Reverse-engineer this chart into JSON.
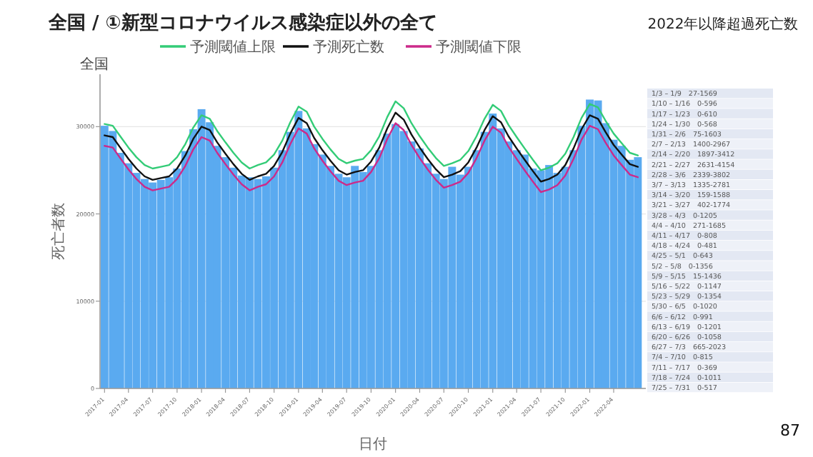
{
  "chart_data": [
    {
      "type": "bar",
      "title": "全国 / ①新型コロナウイルス感染症以外の全て",
      "xlabel": "日付",
      "ylabel": "死亡者数",
      "annotations": [
        "全国",
        "87"
      ],
      "x": [
        "2017-01",
        "2017-02",
        "2017-03",
        "2017-04",
        "2017-05",
        "2017-06",
        "2017-07",
        "2017-08",
        "2017-09",
        "2017-10",
        "2017-11",
        "2017-12",
        "2018-01",
        "2018-02",
        "2018-03",
        "2018-04",
        "2018-05",
        "2018-06",
        "2018-07",
        "2018-08",
        "2018-09",
        "2018-10",
        "2018-11",
        "2018-12",
        "2019-01",
        "2019-02",
        "2019-03",
        "2019-04",
        "2019-05",
        "2019-06",
        "2019-07",
        "2019-08",
        "2019-09",
        "2019-10",
        "2019-11",
        "2019-12",
        "2020-01",
        "2020-02",
        "2020-03",
        "2020-04",
        "2020-05",
        "2020-06",
        "2020-07",
        "2020-08",
        "2020-09",
        "2020-10",
        "2020-11",
        "2020-12",
        "2021-01",
        "2021-02",
        "2021-03",
        "2021-04",
        "2021-05",
        "2021-06",
        "2021-07",
        "2021-08",
        "2021-09",
        "2021-10",
        "2021-11",
        "2021-12",
        "2022-01",
        "2022-02",
        "2022-03",
        "2022-04",
        "2022-05",
        "2022-06",
        "2022-07"
      ],
      "series": [
        {
          "type": "bar",
          "color": "#5aaaf0",
          "values": [
            30100,
            29500,
            27000,
            25800,
            24700,
            24000,
            23600,
            23900,
            24200,
            25200,
            27200,
            29700,
            32000,
            30500,
            27800,
            26500,
            25300,
            24400,
            24200,
            24000,
            24300,
            25300,
            27300,
            29400,
            31800,
            29800,
            28000,
            26800,
            25500,
            24600,
            24200,
            25500,
            24800,
            25500,
            27300,
            29200,
            30300,
            29500,
            28300,
            27500,
            25800,
            24600,
            24000,
            25400,
            24500,
            25400,
            27300,
            29400,
            31500,
            29800,
            28300,
            27300,
            26800,
            25200,
            25000,
            25600,
            24700,
            25400,
            27300,
            30100,
            33100,
            33000,
            30400,
            28500,
            27800,
            26200,
            26500
          ]
        },
        {
          "type": "line",
          "name": "予測閾値上限",
          "color": "#33cc77",
          "values": [
            30300,
            30100,
            28900,
            27600,
            26500,
            25600,
            25200,
            25400,
            25600,
            26500,
            28000,
            29900,
            31300,
            30900,
            29500,
            28200,
            27000,
            25900,
            25200,
            25600,
            25900,
            26800,
            28400,
            30500,
            32300,
            31700,
            30000,
            28600,
            27400,
            26300,
            25800,
            26100,
            26300,
            27300,
            28900,
            31100,
            32900,
            32100,
            30400,
            28900,
            27600,
            26400,
            25500,
            25800,
            26200,
            27200,
            28900,
            30900,
            32500,
            31800,
            30200,
            28800,
            27500,
            26200,
            25000,
            25300,
            25800,
            26900,
            28800,
            31000,
            32600,
            32200,
            30700,
            29200,
            28100,
            27000,
            26700
          ]
        },
        {
          "type": "line",
          "name": "予測死亡数",
          "color": "#111111",
          "values": [
            29000,
            28800,
            27600,
            26300,
            25200,
            24300,
            23900,
            24100,
            24300,
            25200,
            26700,
            28600,
            30000,
            29600,
            28200,
            26900,
            25700,
            24600,
            23900,
            24300,
            24600,
            25500,
            27100,
            29200,
            31000,
            30400,
            28700,
            27300,
            26100,
            25000,
            24500,
            24800,
            25000,
            26000,
            27600,
            29800,
            31600,
            30800,
            29100,
            27600,
            26300,
            25100,
            24200,
            24500,
            24900,
            25900,
            27600,
            29600,
            31200,
            30500,
            28900,
            27500,
            26200,
            24900,
            23700,
            24000,
            24500,
            25600,
            27500,
            29700,
            31300,
            30900,
            29400,
            27900,
            26800,
            25700,
            25400
          ]
        },
        {
          "type": "line",
          "name": "予測閾値下限",
          "color": "#cc2a8a",
          "values": [
            27800,
            27600,
            26400,
            25100,
            24000,
            23100,
            22700,
            22900,
            23100,
            24000,
            25500,
            27400,
            28800,
            28400,
            27000,
            25700,
            24500,
            23400,
            22700,
            23100,
            23400,
            24300,
            25900,
            28000,
            29800,
            29200,
            27500,
            26100,
            24900,
            23800,
            23300,
            23600,
            23800,
            24800,
            26400,
            28600,
            30400,
            29600,
            27900,
            26400,
            25100,
            23900,
            23000,
            23300,
            23700,
            24700,
            26400,
            28400,
            30000,
            29300,
            27700,
            26300,
            25000,
            23700,
            22500,
            22800,
            23300,
            24400,
            26300,
            28500,
            30100,
            29700,
            28200,
            26700,
            25600,
            24500,
            24200
          ]
        }
      ],
      "xlim": [
        "2016-12-15",
        "2022-07-31"
      ],
      "xticks": [
        {
          "value": "2017-01",
          "label": "2017-01"
        },
        {
          "value": "2017-04",
          "label": "2017-04"
        },
        {
          "value": "2017-07",
          "label": "2017-07"
        },
        {
          "value": "2017-10",
          "label": "2017-10"
        },
        {
          "value": "2018-01",
          "label": "2018-01"
        },
        {
          "value": "2018-04",
          "label": "2018-04"
        },
        {
          "value": "2018-07",
          "label": "2018-07"
        },
        {
          "value": "2018-10",
          "label": "2018-10"
        },
        {
          "value": "2019-01",
          "label": "2019-01"
        },
        {
          "value": "2019-04",
          "label": "2019-04"
        },
        {
          "value": "2019-07",
          "label": "2019-07"
        },
        {
          "value": "2019-10",
          "label": "2019-10"
        },
        {
          "value": "2020-01",
          "label": "2020-01"
        },
        {
          "value": "2020-04",
          "label": "2020-04"
        },
        {
          "value": "2020-07",
          "label": "2020-07"
        },
        {
          "value": "2020-10",
          "label": "2020-10"
        },
        {
          "value": "2021-01",
          "label": "2021-01"
        },
        {
          "value": "2021-04",
          "label": "2021-04"
        },
        {
          "value": "2021-07",
          "label": "2021-07"
        },
        {
          "value": "2021-10",
          "label": "2021-10"
        },
        {
          "value": "2022-01",
          "label": "2022-01"
        },
        {
          "value": "2022-04",
          "label": "2022-04"
        }
      ],
      "ylim": [
        0,
        36000
      ],
      "yticks": [
        0,
        10000,
        20000,
        30000
      ],
      "grid": "y",
      "legend": "top"
    },
    {
      "type": "other",
      "title": "2022年以降超過死亡数",
      "annotations": [
        "1/3 – 1/9　27-1569",
        "1/10 – 1/16　0-596",
        "1/17 – 1/23　0-610",
        "1/24 – 1/30　0-568",
        "1/31 – 2/6　75-1603",
        "2/7 – 2/13　1400-2967",
        "2/14 – 2/20　1897-3412",
        "2/21 – 2/27　2631-4154",
        "2/28 – 3/6　2339-3802",
        "3/7 – 3/13　1335-2781",
        "3/14 – 3/20　159-1588",
        "3/21 – 3/27　402-1774",
        "3/28 – 4/3　0-1205",
        "4/4 – 4/10　271-1685",
        "4/11 – 4/17　0-808",
        "4/18 – 4/24　0-481",
        "4/25 – 5/1　0-643",
        "5/2 – 5/8　0-1356",
        "5/9 – 5/15　15-1436",
        "5/16 – 5/22　0-1147",
        "5/23 – 5/29　0-1354",
        "5/30 – 6/5　0-1020",
        "6/6 – 6/12　0-991",
        "6/13 – 6/19　0-1201",
        "6/20 – 6/26　0-1058",
        "6/27 – 7/3　665-2023",
        "7/4 – 7/10　0-815",
        "7/11 – 7/17　0-369",
        "7/18 – 7/24　0-1011",
        "7/25 – 7/31　0-517"
      ]
    }
  ]
}
